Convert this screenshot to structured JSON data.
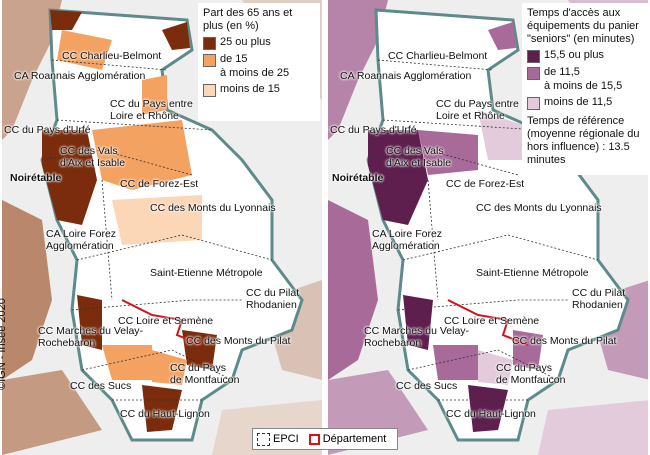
{
  "left_map": {
    "legend_title": "Part des 65 ans et plus (en %)",
    "legend_items": [
      {
        "label": "25 ou plus",
        "color": "#7b2c0c"
      },
      {
        "label": "de 15",
        "color": "#f4a261"
      },
      {
        "label": "à moins de 25",
        "color": ""
      },
      {
        "label": "moins de 15",
        "color": "#fbd7b8"
      }
    ]
  },
  "right_map": {
    "legend_title": "Temps d'accès aux équipements du panier \"seniors\" (en minutes)",
    "legend_items": [
      {
        "label": "15,5 ou plus",
        "color": "#5e1f4f"
      },
      {
        "label": "de 11,5",
        "color": "#a86a98"
      },
      {
        "label": "à moins de 15,5",
        "color": ""
      },
      {
        "label": "moins de 11,5",
        "color": "#e4cbdc"
      }
    ],
    "reference_note": "Temps de référence (moyenne régionale du hors influence) : 13.5 minutes"
  },
  "place_labels": [
    "CC Charlieu-Belmont",
    "CA Roannais Agglomération",
    "CC du Pays entre Loire et Rhône",
    "CC du Pays d'Urfé",
    "CC des Vals d'Aix et Isable",
    "Noirétable",
    "CC de Forez-Est",
    "CC des Monts du Lyonnais",
    "CA Loire Forez Agglomération",
    "Saint-Etienne Métropole",
    "CC du Pilat Rhodanien",
    "CC Loire et Semène",
    "CC Marches du Velay-Rochebaron",
    "CC des Monts du Pilat",
    "CC du Pays de Montfaucon",
    "CC des Sucs",
    "CC du Haut-Lignon"
  ],
  "credit": "©IGN - Insee 2020",
  "bottom_legend": {
    "epci": "EPCI",
    "departement": "Département"
  }
}
